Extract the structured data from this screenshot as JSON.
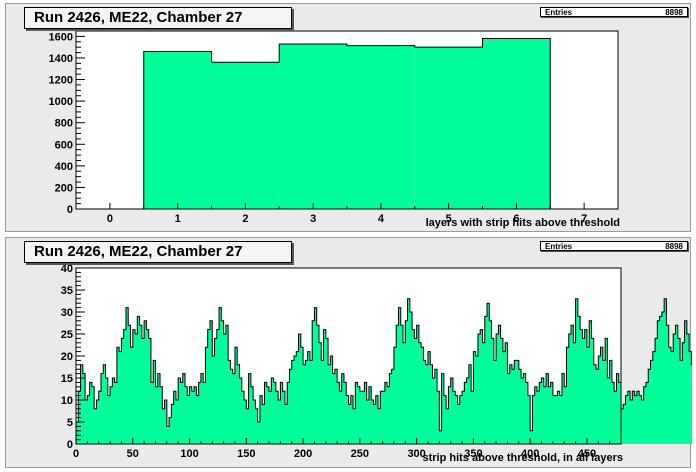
{
  "chart_data": [
    {
      "type": "bar",
      "title": "Run 2426, ME22, Chamber 27",
      "xlabel": "layers with strip hits above threshold",
      "ylabel": "",
      "stats": {
        "entries_label": "Entries",
        "entries_value": "8898"
      },
      "xlim": [
        -0.5,
        7.5
      ],
      "ylim": [
        0,
        1650
      ],
      "x_ticks": [
        "0",
        "1",
        "2",
        "3",
        "4",
        "5",
        "6",
        "7"
      ],
      "y_ticks": [
        "0",
        "200",
        "400",
        "600",
        "800",
        "1000",
        "1200",
        "1400",
        "1600"
      ],
      "categories": [
        "1",
        "2",
        "3",
        "4",
        "5",
        "6"
      ],
      "values": [
        1460,
        1360,
        1530,
        1515,
        1500,
        1580
      ],
      "fill_color": "#00ff99",
      "grid": false
    },
    {
      "type": "bar",
      "title": "Run 2426, ME22, Chamber 27",
      "xlabel": "strip hits above threshold, in all layers",
      "ylabel": "",
      "stats": {
        "entries_label": "Entries",
        "entries_value": "8898"
      },
      "xlim": [
        0,
        480
      ],
      "ylim": [
        0,
        40
      ],
      "x_ticks": [
        "0",
        "50",
        "100",
        "150",
        "200",
        "250",
        "300",
        "350",
        "400",
        "450"
      ],
      "y_ticks": [
        "0",
        "5",
        "10",
        "15",
        "20",
        "25",
        "30",
        "35",
        "40"
      ],
      "bin_width": 2,
      "values": [
        5,
        12,
        18,
        16,
        10,
        11,
        14,
        13,
        8,
        10,
        12,
        16,
        18,
        15,
        11,
        13,
        15,
        14,
        22,
        21,
        24,
        26,
        31,
        27,
        22,
        26,
        25,
        29,
        27,
        24,
        28,
        26,
        24,
        14,
        19,
        13,
        16,
        13,
        8,
        10,
        4,
        6,
        9,
        12,
        10,
        15,
        14,
        16,
        13,
        11,
        13,
        12,
        13,
        11,
        14,
        16,
        14,
        22,
        26,
        28,
        20,
        24,
        26,
        31,
        28,
        25,
        27,
        19,
        17,
        16,
        22,
        18,
        15,
        12,
        10,
        8,
        16,
        13,
        10,
        8,
        5,
        11,
        9,
        14,
        13,
        12,
        15,
        14,
        12,
        10,
        14,
        12,
        9,
        14,
        17,
        19,
        20,
        21,
        25,
        22,
        18,
        19,
        21,
        19,
        28,
        31,
        27,
        23,
        19,
        26,
        24,
        18,
        20,
        16,
        17,
        14,
        12,
        16,
        14,
        11,
        9,
        11,
        8,
        14,
        13,
        12,
        12,
        14,
        10,
        13,
        10,
        9,
        11,
        8,
        12,
        12,
        14,
        13,
        16,
        17,
        22,
        27,
        31,
        27,
        23,
        28,
        33,
        30,
        26,
        24,
        27,
        23,
        22,
        19,
        18,
        21,
        18,
        15,
        17,
        12,
        3,
        16,
        11,
        8,
        13,
        15,
        12,
        11,
        9,
        11,
        12,
        14,
        15,
        18,
        12,
        21,
        20,
        25,
        26,
        23,
        29,
        32,
        28,
        24,
        19,
        25,
        27,
        24,
        21,
        23,
        16,
        18,
        17,
        19,
        19,
        17,
        15,
        16,
        14,
        11,
        3,
        11,
        13,
        12,
        14,
        15,
        13,
        16,
        13,
        14,
        11,
        11,
        12,
        11,
        16,
        13,
        22,
        25,
        27,
        23,
        33,
        29,
        26,
        24,
        26,
        22,
        28,
        24,
        18,
        17,
        20,
        22,
        19,
        24,
        15,
        19,
        14,
        12,
        16,
        14,
        8,
        9,
        11,
        12,
        10,
        12,
        11,
        12,
        11,
        10,
        13,
        14,
        17,
        19,
        21,
        24,
        28,
        29,
        30,
        33,
        27,
        22,
        21,
        25,
        27,
        24,
        19,
        23,
        28,
        25,
        21,
        18,
        24,
        22,
        17,
        20,
        19,
        14,
        12,
        11,
        3,
        11,
        9,
        10,
        12,
        13,
        16,
        18,
        12,
        16,
        14,
        13,
        15,
        12,
        13,
        18,
        18,
        22,
        28,
        25,
        27,
        28,
        26,
        29,
        28,
        25,
        34,
        33,
        26,
        29,
        27,
        20,
        24,
        23,
        22,
        20,
        20,
        19,
        12,
        14
      ],
      "fill_color": "#00ff99",
      "grid": false
    }
  ]
}
